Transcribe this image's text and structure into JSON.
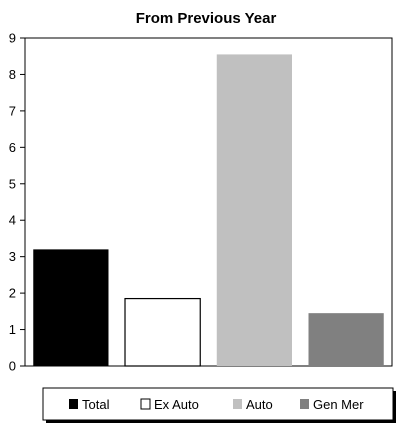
{
  "chart_data": {
    "type": "bar",
    "title": "From Previous Year",
    "xlabel": "",
    "ylabel": "",
    "categories": [
      "Total",
      "Ex Auto",
      "Auto",
      "Gen Mer"
    ],
    "values": [
      3.2,
      1.85,
      8.55,
      1.45
    ],
    "colors": [
      "#000000",
      "#ffffff",
      "#c0c0c0",
      "#808080"
    ],
    "ylim": [
      0,
      9
    ],
    "yticks": [
      0,
      1,
      2,
      3,
      4,
      5,
      6,
      7,
      8,
      9
    ],
    "grid": false,
    "legend": {
      "placement": "bottom",
      "entries": [
        "Total",
        "Ex Auto",
        "Auto",
        "Gen Mer"
      ]
    }
  }
}
